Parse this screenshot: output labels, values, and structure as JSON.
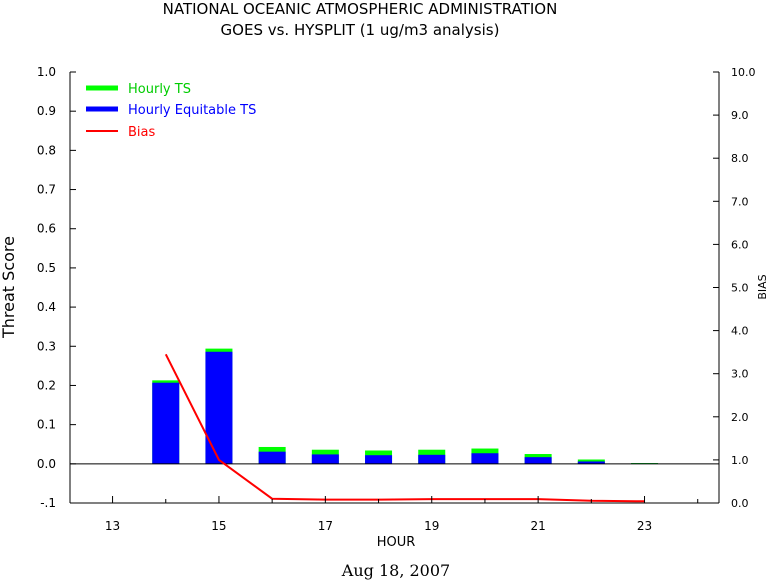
{
  "chart_data": {
    "type": "bar",
    "title": "NATIONAL OCEANIC ATMOSPHERIC ADMINISTRATION",
    "subtitle": "GOES vs. HYSPLIT  (1 ug/m3 analysis)",
    "xlabel": "HOUR",
    "ylabel": "Threat Score",
    "y2label": "BIAS",
    "date_label": "Aug 18, 2007",
    "xlim": [
      12.2,
      24.4
    ],
    "ylim": [
      -0.1,
      1.0
    ],
    "y2lim": [
      0.0,
      10.0
    ],
    "x_ticks": [
      13,
      15,
      17,
      19,
      21,
      23
    ],
    "x_tick_labels": [
      "13",
      "15",
      "17",
      "19",
      "21",
      "23"
    ],
    "x_minor_ticks": [
      14,
      16,
      18,
      20,
      22,
      24
    ],
    "y_ticks": [
      -0.1,
      0.0,
      0.1,
      0.2,
      0.3,
      0.4,
      0.5,
      0.6,
      0.7,
      0.8,
      0.9,
      1.0
    ],
    "y_tick_labels": [
      "-.1",
      "0.0",
      "0.1",
      "0.2",
      "0.3",
      "0.4",
      "0.5",
      "0.6",
      "0.7",
      "0.8",
      "0.9",
      "1.0"
    ],
    "y2_ticks": [
      0,
      1,
      2,
      3,
      4,
      5,
      6,
      7,
      8,
      9,
      10
    ],
    "y2_tick_labels": [
      "0.0",
      "1.0",
      "2.0",
      "3.0",
      "4.0",
      "5.0",
      "6.0",
      "7.0",
      "8.0",
      "9.0",
      "10.0"
    ],
    "grid": false,
    "legend_position": "top-left",
    "x": [
      14,
      15,
      16,
      17,
      18,
      19,
      20,
      21,
      22,
      23
    ],
    "series": [
      {
        "name": "Hourly TS",
        "color": "#00ff00",
        "axis": "left",
        "kind": "bar",
        "values": [
          0.213,
          0.294,
          0.043,
          0.036,
          0.034,
          0.036,
          0.039,
          0.025,
          0.011,
          0.002
        ]
      },
      {
        "name": "Hourly Equitable TS",
        "color": "#0000ff",
        "axis": "left",
        "kind": "bar",
        "values": [
          0.207,
          0.286,
          0.031,
          0.024,
          0.022,
          0.023,
          0.027,
          0.017,
          0.006,
          0.001
        ]
      },
      {
        "name": "Bias",
        "color": "#ff0000",
        "axis": "right",
        "kind": "line",
        "values": [
          3.45,
          1.0,
          0.1,
          0.08,
          0.08,
          0.09,
          0.09,
          0.09,
          0.05,
          0.04
        ]
      }
    ]
  }
}
